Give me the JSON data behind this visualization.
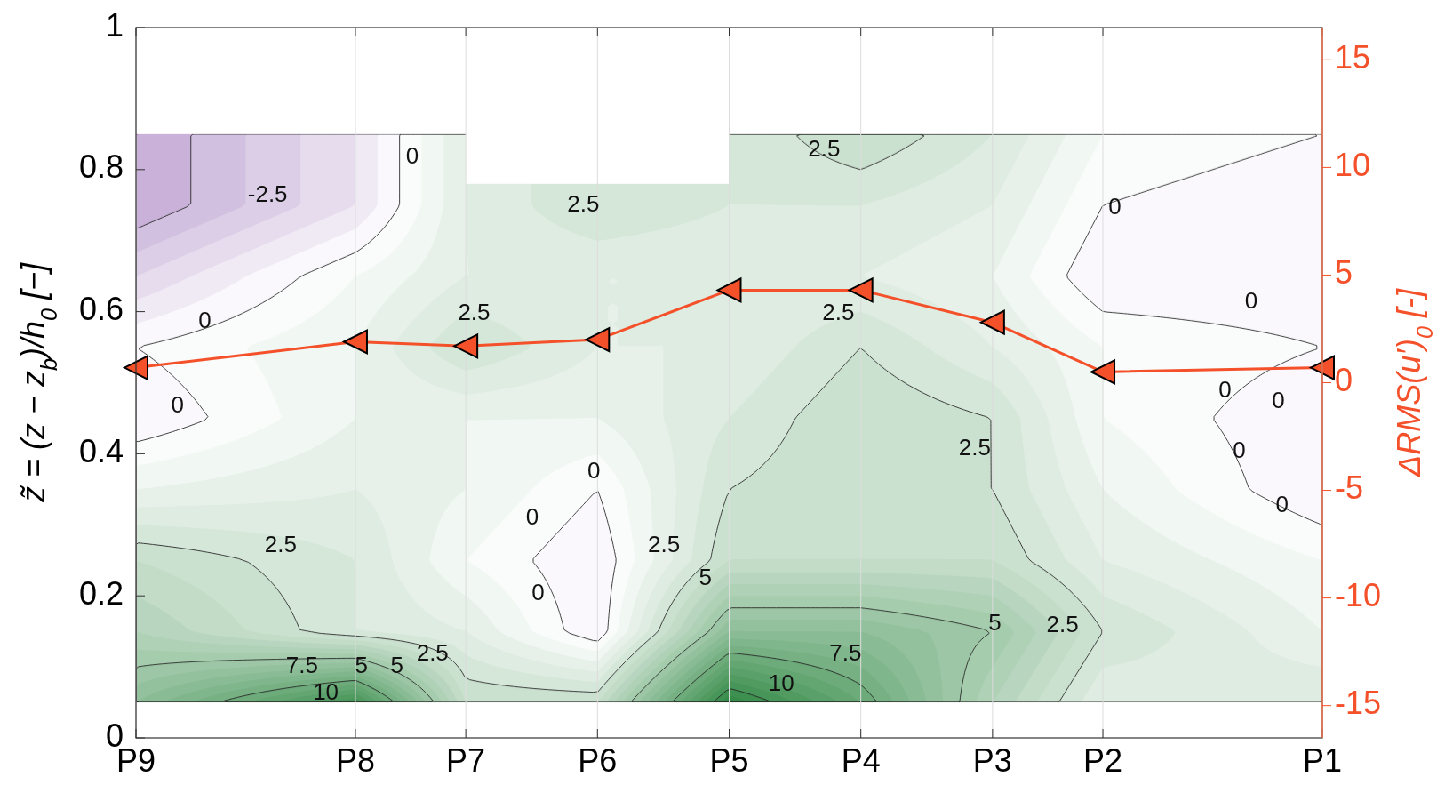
{
  "chart_data": {
    "type": "line",
    "ylabel": "z̃ = (z − z$_{b}$)/h$_{0}$ [−]",
    "y2label": "ΔRMS(u′)$_{0}$ [-]",
    "categories": [
      "P9",
      "P8",
      "P7",
      "P6",
      "P5",
      "P4",
      "P3",
      "P2",
      "P1"
    ],
    "ylim": [
      0,
      1
    ],
    "yticks": [
      0,
      0.2,
      0.4,
      0.6,
      0.8,
      1
    ],
    "y2lim": [
      -16.5,
      16.5
    ],
    "y2ticks": [
      -15,
      -10,
      -5,
      0,
      5,
      10,
      15
    ],
    "grid": "x",
    "marker": "triangle",
    "line_style": "solid",
    "series": [
      {
        "axis": "y2",
        "color": "#f4502a",
        "values": [
          0.7,
          1.9,
          1.7,
          2.0,
          4.3,
          4.3,
          2.8,
          0.5,
          0.7
        ]
      }
    ],
    "annotations": [
      "0",
      "-2.5",
      "2.5",
      "2.5",
      "0",
      "0",
      "2.5",
      "2.5",
      "0",
      "0",
      "0",
      "0",
      "0",
      "2.5",
      "0",
      "0",
      "0",
      "2.5",
      "2.5",
      "0",
      "5",
      "5",
      "2.5",
      "7.5",
      "2.5",
      "10",
      "10",
      "7.5",
      "5",
      "5"
    ]
  }
}
